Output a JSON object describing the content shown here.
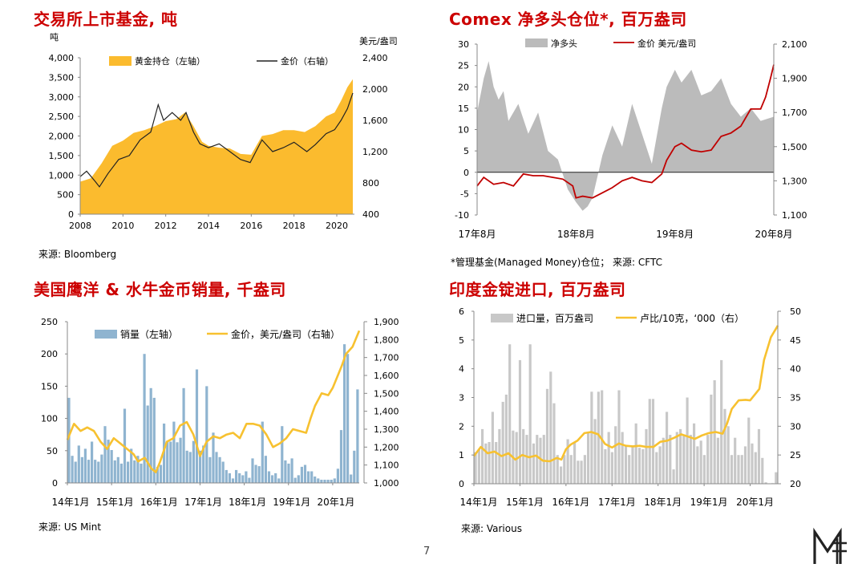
{
  "page_number": "7",
  "chart_data": [
    {
      "id": "etf",
      "type": "area+line",
      "title": "交易所上市基金, 吨",
      "source": "来源: Bloomberg",
      "left_unit": "吨",
      "right_unit": "美元/盎司",
      "legend": [
        {
          "label": "黄金持仓（左轴）",
          "color": "#fbbb2e"
        },
        {
          "label": "金价（右轴）",
          "color": "#222222"
        }
      ],
      "x_ticks": [
        "2008",
        "2010",
        "2012",
        "2014",
        "2016",
        "2018",
        "2020"
      ],
      "xlim": [
        2008,
        2020.75
      ],
      "y_left": {
        "min": 0,
        "max": 4000,
        "ticks": [
          "0",
          "500",
          "1,000",
          "1,500",
          "2,000",
          "2,500",
          "3,000",
          "3,500",
          "4,000"
        ]
      },
      "y_right": {
        "min": 400,
        "max": 2400,
        "ticks": [
          "400",
          "800",
          "1,200",
          "1,600",
          "2,000",
          "2,400"
        ]
      },
      "holdings": {
        "x": [
          2008,
          2008.5,
          2009,
          2009.5,
          2010,
          2010.5,
          2011,
          2011.5,
          2012,
          2012.5,
          2012.9,
          2013.3,
          2013.7,
          2014,
          2014.5,
          2015,
          2015.5,
          2016,
          2016.5,
          2017,
          2017.5,
          2018,
          2018.5,
          2019,
          2019.5,
          2019.9,
          2020.2,
          2020.5,
          2020.75
        ],
        "y": [
          830,
          920,
          1300,
          1750,
          1880,
          2080,
          2150,
          2250,
          2380,
          2430,
          2600,
          2250,
          1850,
          1750,
          1700,
          1680,
          1540,
          1520,
          2000,
          2050,
          2150,
          2150,
          2100,
          2250,
          2500,
          2600,
          2900,
          3250,
          3450
        ]
      },
      "gold": {
        "x": [
          2008,
          2008.3,
          2008.7,
          2008.9,
          2009.3,
          2009.8,
          2010.3,
          2010.8,
          2011.3,
          2011.65,
          2011.9,
          2012.3,
          2012.7,
          2012.95,
          2013.3,
          2013.6,
          2014,
          2014.5,
          2015,
          2015.5,
          2015.95,
          2016.5,
          2017,
          2017.5,
          2018,
          2018.6,
          2019,
          2019.5,
          2019.9,
          2020.2,
          2020.5,
          2020.75
        ],
        "y": [
          880,
          950,
          820,
          750,
          920,
          1100,
          1150,
          1350,
          1450,
          1800,
          1600,
          1700,
          1600,
          1700,
          1450,
          1300,
          1250,
          1300,
          1200,
          1100,
          1060,
          1350,
          1200,
          1250,
          1320,
          1200,
          1290,
          1430,
          1480,
          1600,
          1750,
          1950
        ]
      }
    },
    {
      "id": "comex",
      "type": "area+line",
      "title": "Comex 净多头仓位*, 百万盎司",
      "source": "*管理基金(Managed Money)仓位； 来源: CFTC",
      "legend": [
        {
          "label": "净多头",
          "color": "#bbbbbb"
        },
        {
          "label": "金价 美元/盎司",
          "color": "#c00000"
        }
      ],
      "x_ticks": [
        "17年8月",
        "18年8月",
        "19年8月",
        "20年8月"
      ],
      "xlim": [
        2017.583,
        2020.583
      ],
      "y_left": {
        "min": -10,
        "max": 30,
        "ticks": [
          "-10",
          "-5",
          "0",
          "5",
          "10",
          "15",
          "20",
          "25",
          "30"
        ]
      },
      "y_right": {
        "min": 1100,
        "max": 2100,
        "ticks": [
          "1,100",
          "1,300",
          "1,500",
          "1,700",
          "1,900",
          "2,100"
        ]
      },
      "net_long": {
        "x": [
          2017.583,
          2017.65,
          2017.7,
          2017.75,
          2017.8,
          2017.85,
          2017.9,
          2018.0,
          2018.1,
          2018.2,
          2018.3,
          2018.4,
          2018.5,
          2018.583,
          2018.65,
          2018.7,
          2018.75,
          2018.85,
          2018.95,
          2019.05,
          2019.15,
          2019.25,
          2019.35,
          2019.45,
          2019.5,
          2019.583,
          2019.65,
          2019.75,
          2019.85,
          2019.95,
          2020.05,
          2020.15,
          2020.25,
          2020.35,
          2020.45,
          2020.583
        ],
        "y": [
          14,
          22,
          26,
          20,
          17,
          19,
          12,
          16,
          9,
          14,
          5,
          3,
          -4,
          -7,
          -9,
          -8,
          -6,
          4,
          11,
          6,
          16,
          9,
          2,
          15,
          20,
          24,
          21,
          24,
          18,
          19,
          22,
          16,
          13,
          15,
          12,
          13
        ]
      },
      "gold": {
        "x": [
          2017.583,
          2017.65,
          2017.75,
          2017.85,
          2017.95,
          2018.05,
          2018.15,
          2018.25,
          2018.35,
          2018.45,
          2018.55,
          2018.583,
          2018.65,
          2018.75,
          2018.85,
          2018.95,
          2019.05,
          2019.15,
          2019.25,
          2019.35,
          2019.45,
          2019.5,
          2019.583,
          2019.65,
          2019.75,
          2019.85,
          2019.95,
          2020.05,
          2020.15,
          2020.25,
          2020.35,
          2020.45,
          2020.5,
          2020.55,
          2020.583
        ],
        "y": [
          1270,
          1320,
          1280,
          1290,
          1270,
          1340,
          1330,
          1330,
          1320,
          1310,
          1270,
          1200,
          1210,
          1200,
          1230,
          1260,
          1300,
          1320,
          1300,
          1290,
          1340,
          1420,
          1500,
          1520,
          1480,
          1470,
          1480,
          1560,
          1580,
          1620,
          1720,
          1720,
          1790,
          1900,
          1980
        ]
      }
    },
    {
      "id": "mint",
      "type": "bar+line",
      "title": "美国鹰洋 & 水牛金币销量, 千盎司",
      "source": "来源: US Mint",
      "legend": [
        {
          "label": "销量（左轴）",
          "color": "#8fb4d0"
        },
        {
          "label": "金价，美元/盎司（右轴）",
          "color": "#f7c130"
        }
      ],
      "x_ticks": [
        "14年1月",
        "15年1月",
        "16年1月",
        "17年1月",
        "18年1月",
        "19年1月",
        "20年1月"
      ],
      "xlim": [
        2014.0,
        2020.6
      ],
      "y_left": {
        "min": 0,
        "max": 250,
        "ticks": [
          "0",
          "50",
          "100",
          "150",
          "200",
          "250"
        ]
      },
      "y_right": {
        "min": 1000,
        "max": 1900,
        "ticks": [
          "1,000",
          "1,100",
          "1,200",
          "1,300",
          "1,400",
          "1,500",
          "1,600",
          "1,700",
          "1,800",
          "1,900"
        ]
      },
      "sales": [
        132,
        42,
        33,
        58,
        40,
        53,
        36,
        64,
        36,
        33,
        44,
        88,
        67,
        51,
        35,
        40,
        30,
        115,
        33,
        53,
        35,
        42,
        30,
        200,
        120,
        147,
        132,
        25,
        28,
        92,
        65,
        64,
        95,
        63,
        70,
        147,
        50,
        48,
        65,
        176,
        50,
        58,
        150,
        40,
        78,
        48,
        40,
        33,
        20,
        15,
        7,
        20,
        15,
        12,
        18,
        8,
        38,
        28,
        26,
        95,
        42,
        18,
        12,
        15,
        7,
        88,
        35,
        30,
        38,
        8,
        12,
        25,
        28,
        18,
        18,
        10,
        7,
        5,
        5,
        5,
        5,
        7,
        22,
        82,
        215,
        200,
        13,
        50,
        145
      ],
      "gold": {
        "x": [
          2014.0,
          2014.15,
          2014.3,
          2014.45,
          2014.6,
          2014.75,
          2014.9,
          2015.05,
          2015.2,
          2015.35,
          2015.5,
          2015.6,
          2015.75,
          2015.9,
          2016.0,
          2016.1,
          2016.25,
          2016.4,
          2016.55,
          2016.7,
          2016.85,
          2017.0,
          2017.15,
          2017.3,
          2017.45,
          2017.6,
          2017.75,
          2017.9,
          2018.05,
          2018.2,
          2018.35,
          2018.5,
          2018.65,
          2018.8,
          2018.95,
          2019.1,
          2019.25,
          2019.4,
          2019.5,
          2019.6,
          2019.75,
          2019.9,
          2020.0,
          2020.1,
          2020.2,
          2020.3,
          2020.45,
          2020.6
        ],
        "y": [
          1240,
          1330,
          1290,
          1310,
          1290,
          1230,
          1190,
          1250,
          1220,
          1190,
          1160,
          1120,
          1140,
          1080,
          1060,
          1120,
          1230,
          1250,
          1320,
          1340,
          1270,
          1150,
          1230,
          1260,
          1250,
          1270,
          1280,
          1250,
          1330,
          1330,
          1320,
          1270,
          1200,
          1220,
          1250,
          1300,
          1290,
          1280,
          1360,
          1430,
          1500,
          1490,
          1530,
          1590,
          1650,
          1720,
          1760,
          1850
        ]
      }
    },
    {
      "id": "india",
      "type": "bar+line",
      "title": "印度金锭进口, 百万盎司",
      "source": "来源: Various",
      "legend": [
        {
          "label": "进口量，百万盎司",
          "color": "#c8c8c8"
        },
        {
          "label": "卢比/10克，‘000（右）",
          "color": "#f7c130"
        }
      ],
      "x_ticks": [
        "14年1月",
        "15年1月",
        "16年1月",
        "17年1月",
        "18年1月",
        "19年1月",
        "20年1月"
      ],
      "xlim": [
        2014.0,
        2020.6
      ],
      "y_left": {
        "min": 0,
        "max": 6,
        "ticks": [
          "0",
          "1",
          "2",
          "3",
          "4",
          "5",
          "6"
        ]
      },
      "y_right": {
        "min": 20,
        "max": 50,
        "ticks": [
          "20",
          "25",
          "30",
          "35",
          "40",
          "45",
          "50"
        ]
      },
      "imports": [
        1.1,
        1.2,
        1.9,
        1.4,
        1.45,
        2.5,
        1.45,
        1.9,
        2.85,
        3.1,
        4.85,
        1.85,
        1.8,
        4.3,
        1.9,
        1.7,
        4.85,
        1.4,
        1.7,
        1.6,
        1.7,
        3.3,
        3.9,
        2.8,
        1.0,
        0.6,
        1.0,
        1.55,
        1.0,
        1.45,
        0.8,
        0.8,
        1.0,
        1.8,
        3.2,
        2.25,
        3.2,
        3.25,
        1.2,
        1.8,
        1.1,
        2.0,
        3.25,
        1.8,
        1.3,
        1.0,
        1.3,
        2.1,
        1.25,
        1.2,
        1.9,
        2.95,
        2.95,
        1.1,
        1.3,
        1.6,
        2.5,
        1.7,
        0.5,
        1.8,
        1.9,
        1.7,
        3.0,
        1.7,
        2.1,
        1.3,
        1.5,
        1.0,
        1.7,
        3.1,
        3.6,
        1.6,
        4.3,
        2.6,
        2.0,
        1.0,
        1.6,
        1.0,
        1.0,
        1.3,
        2.3,
        1.4,
        1.1,
        1.9,
        0.9,
        0.05,
        0.0,
        0.02,
        0.4
      ],
      "rupee": {
        "x": [
          2014.0,
          2014.15,
          2014.3,
          2014.45,
          2014.6,
          2014.75,
          2014.9,
          2015.05,
          2015.2,
          2015.35,
          2015.5,
          2015.65,
          2015.8,
          2015.9,
          2016.0,
          2016.1,
          2016.25,
          2016.4,
          2016.55,
          2016.7,
          2016.85,
          2017.0,
          2017.15,
          2017.3,
          2017.45,
          2017.6,
          2017.75,
          2017.9,
          2018.05,
          2018.2,
          2018.35,
          2018.5,
          2018.65,
          2018.8,
          2018.95,
          2019.1,
          2019.25,
          2019.4,
          2019.5,
          2019.6,
          2019.75,
          2019.9,
          2020.0,
          2020.1,
          2020.2,
          2020.3,
          2020.45,
          2020.6
        ],
        "y": [
          24.8,
          26.4,
          25.3,
          25.6,
          24.8,
          25.3,
          24.2,
          25.0,
          24.6,
          24.9,
          24.0,
          23.9,
          24.5,
          24.2,
          26.0,
          26.8,
          27.5,
          28.8,
          29.0,
          28.6,
          26.9,
          26.3,
          27.0,
          26.6,
          26.5,
          26.6,
          26.4,
          26.4,
          27.3,
          27.5,
          28.0,
          28.6,
          28.2,
          27.8,
          28.4,
          28.8,
          29.0,
          28.7,
          30.5,
          33.0,
          34.5,
          34.6,
          34.5,
          35.5,
          36.5,
          41.5,
          45.5,
          47.5
        ]
      }
    }
  ]
}
